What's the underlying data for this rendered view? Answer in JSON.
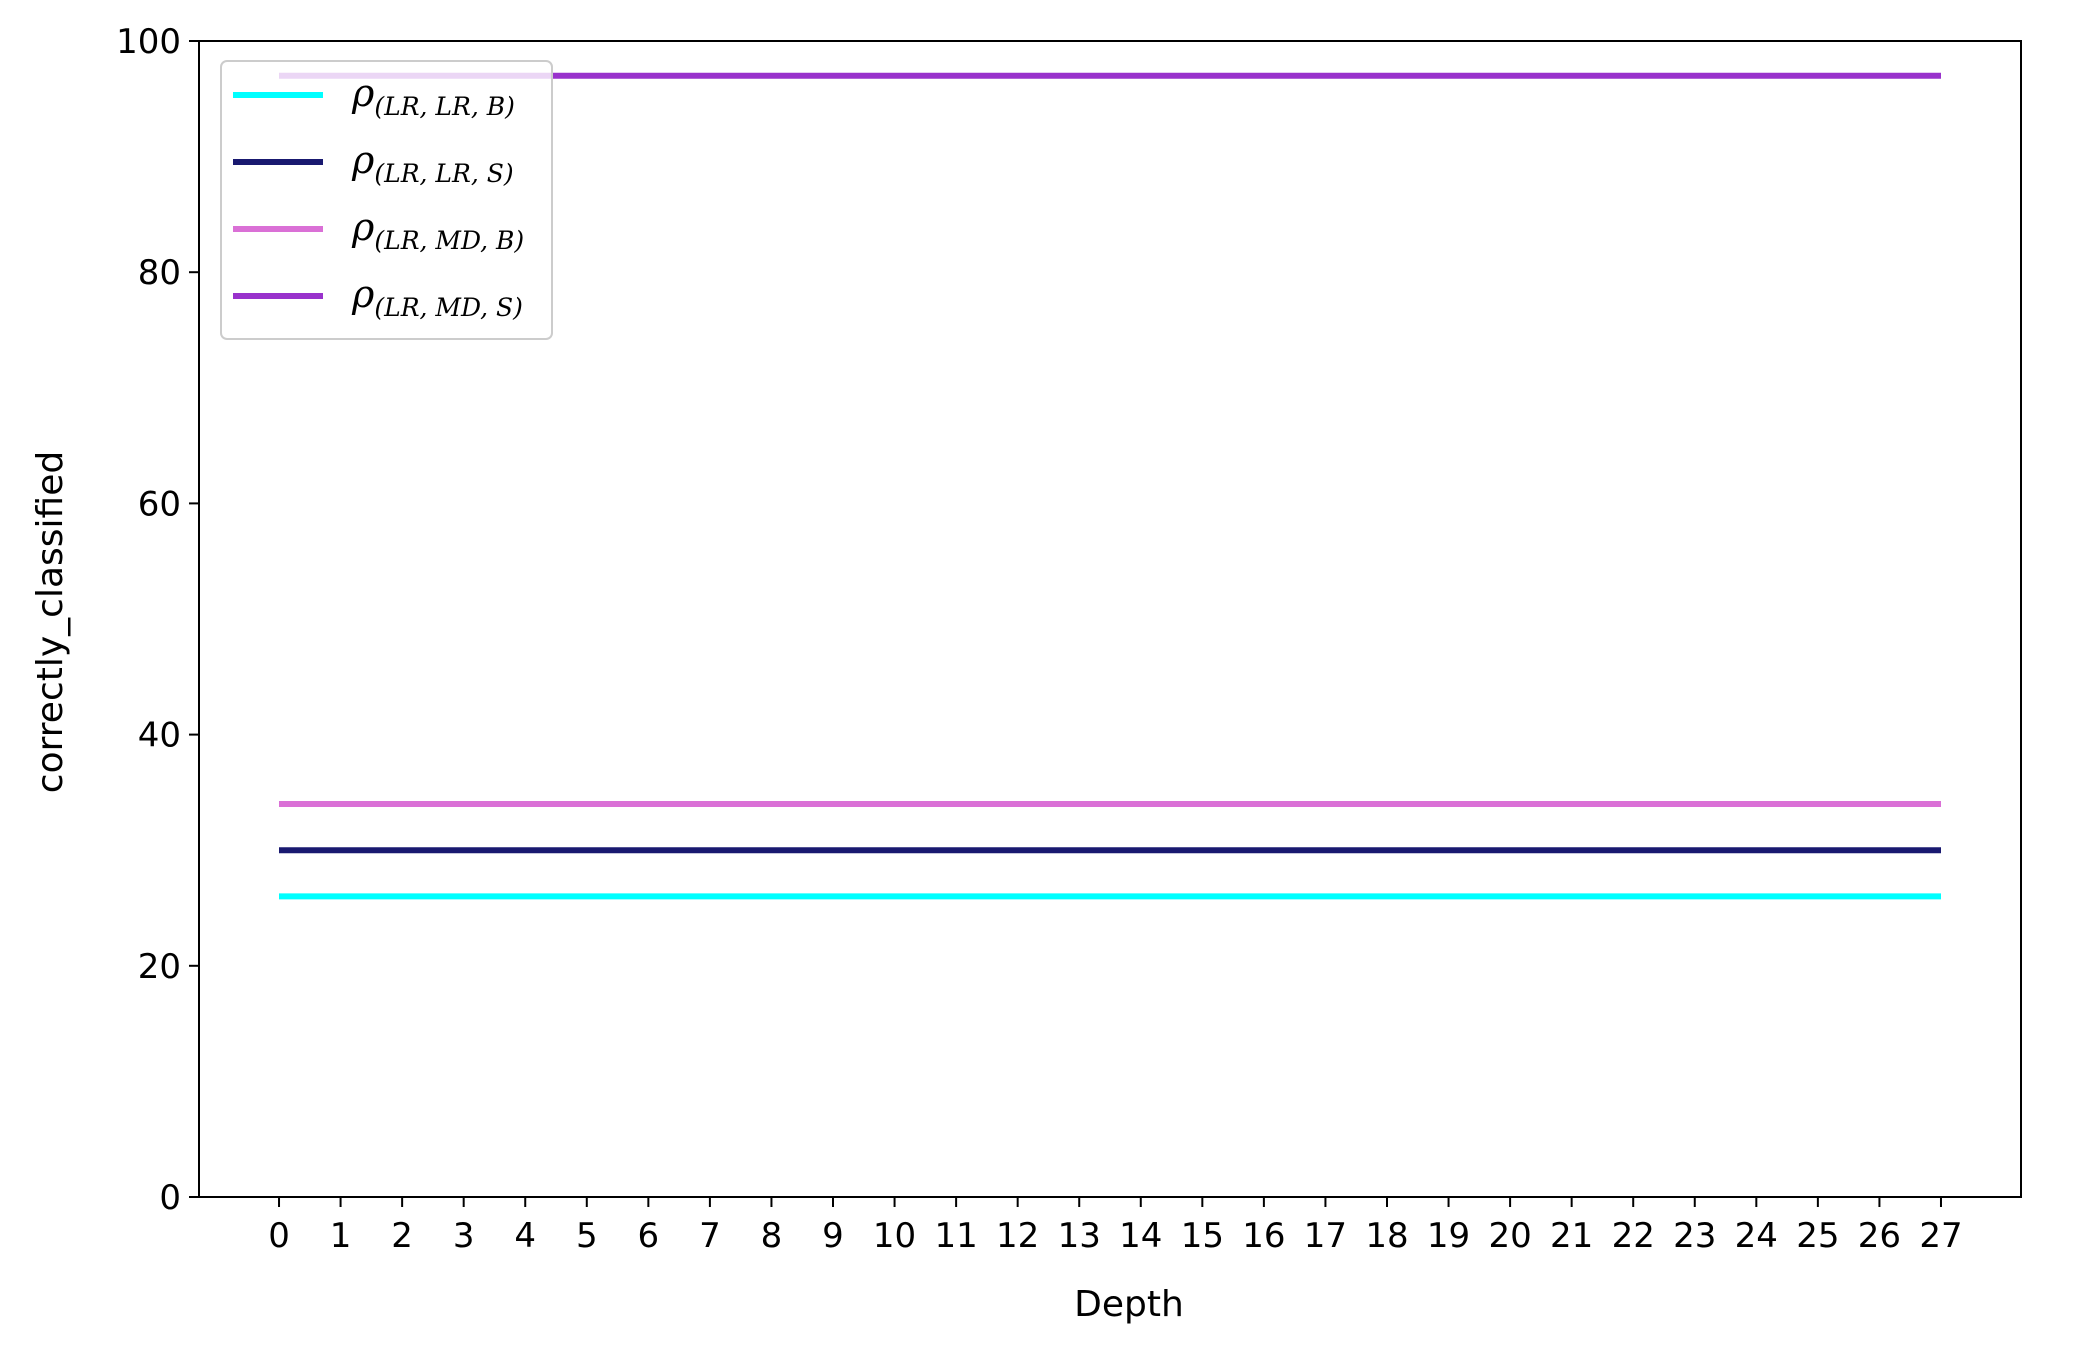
{
  "chart_data": {
    "type": "line",
    "title": "",
    "xlabel": "Depth",
    "ylabel": "correctly_classified",
    "x": [
      0,
      1,
      2,
      3,
      4,
      5,
      6,
      7,
      8,
      9,
      10,
      11,
      12,
      13,
      14,
      15,
      16,
      17,
      18,
      19,
      20,
      21,
      22,
      23,
      24,
      25,
      26,
      27
    ],
    "x_tick_labels": [
      "0",
      "1",
      "2",
      "3",
      "4",
      "5",
      "6",
      "7",
      "8",
      "9",
      "10",
      "11",
      "12",
      "13",
      "14",
      "15",
      "16",
      "17",
      "18",
      "19",
      "20",
      "21",
      "22",
      "23",
      "24",
      "25",
      "26",
      "27"
    ],
    "xlim": [
      -1.3,
      28.3
    ],
    "ylim": [
      0,
      100
    ],
    "y_ticks": [
      0,
      20,
      40,
      60,
      80,
      100
    ],
    "y_tick_labels": [
      "0",
      "20",
      "40",
      "60",
      "80",
      "100"
    ],
    "grid": false,
    "legend_position": "top-left",
    "series": [
      {
        "name": "ρ(LR,LR,B)",
        "name_base": "ρ",
        "name_sub": "(LR, LR, B)",
        "color": "#00ffff",
        "values": [
          26,
          26,
          26,
          26,
          26,
          26,
          26,
          26,
          26,
          26,
          26,
          26,
          26,
          26,
          26,
          26,
          26,
          26,
          26,
          26,
          26,
          26,
          26,
          26,
          26,
          26,
          26,
          26
        ]
      },
      {
        "name": "ρ(LR,LR,S)",
        "name_base": "ρ",
        "name_sub": "(LR, LR, S)",
        "color": "#191970",
        "values": [
          30,
          30,
          30,
          30,
          30,
          30,
          30,
          30,
          30,
          30,
          30,
          30,
          30,
          30,
          30,
          30,
          30,
          30,
          30,
          30,
          30,
          30,
          30,
          30,
          30,
          30,
          30,
          30
        ]
      },
      {
        "name": "ρ(LR,MD,B)",
        "name_base": "ρ",
        "name_sub": "(LR, MD, B)",
        "color": "#da70d6",
        "values": [
          34,
          34,
          34,
          34,
          34,
          34,
          34,
          34,
          34,
          34,
          34,
          34,
          34,
          34,
          34,
          34,
          34,
          34,
          34,
          34,
          34,
          34,
          34,
          34,
          34,
          34,
          34,
          34
        ]
      },
      {
        "name": "ρ(LR,MD,S)",
        "name_base": "ρ",
        "name_sub": "(LR, MD, S)",
        "color": "#9932cc",
        "values": [
          97,
          97,
          97,
          97,
          97,
          97,
          97,
          97,
          97,
          97,
          97,
          97,
          97,
          97,
          97,
          97,
          97,
          97,
          97,
          97,
          97,
          97,
          97,
          97,
          97,
          97,
          97,
          97
        ]
      }
    ]
  }
}
